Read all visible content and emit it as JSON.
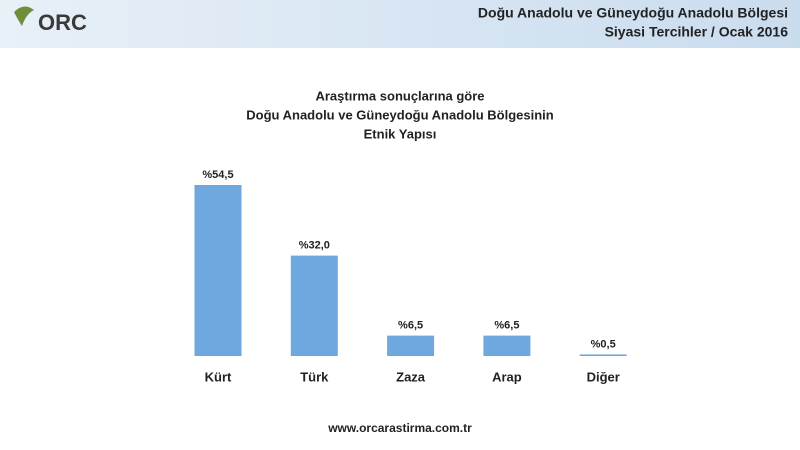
{
  "header": {
    "logo": "ORC",
    "lines": [
      "Doğu Anadolu ve Güneydoğu Anadolu Bölgesi",
      "Siyasi Tercihler / Ocak 2016"
    ]
  },
  "chart_data": {
    "type": "bar",
    "title": [
      "Araştırma sonuçlarına göre",
      "Doğu Anadolu ve Güneydoğu Anadolu Bölgesinin",
      "Etnik Yapısı"
    ],
    "categories": [
      "Kürt",
      "Türk",
      "Zaza",
      "Arap",
      "Diğer"
    ],
    "values": [
      54.5,
      32.0,
      6.5,
      6.5,
      0.5
    ],
    "value_labels": [
      "%54,5",
      "%32,0",
      "%6,5",
      "%6,5",
      "%0,5"
    ],
    "color": "#6fa8df"
  },
  "footer": "www.orcarastirma.com.tr"
}
